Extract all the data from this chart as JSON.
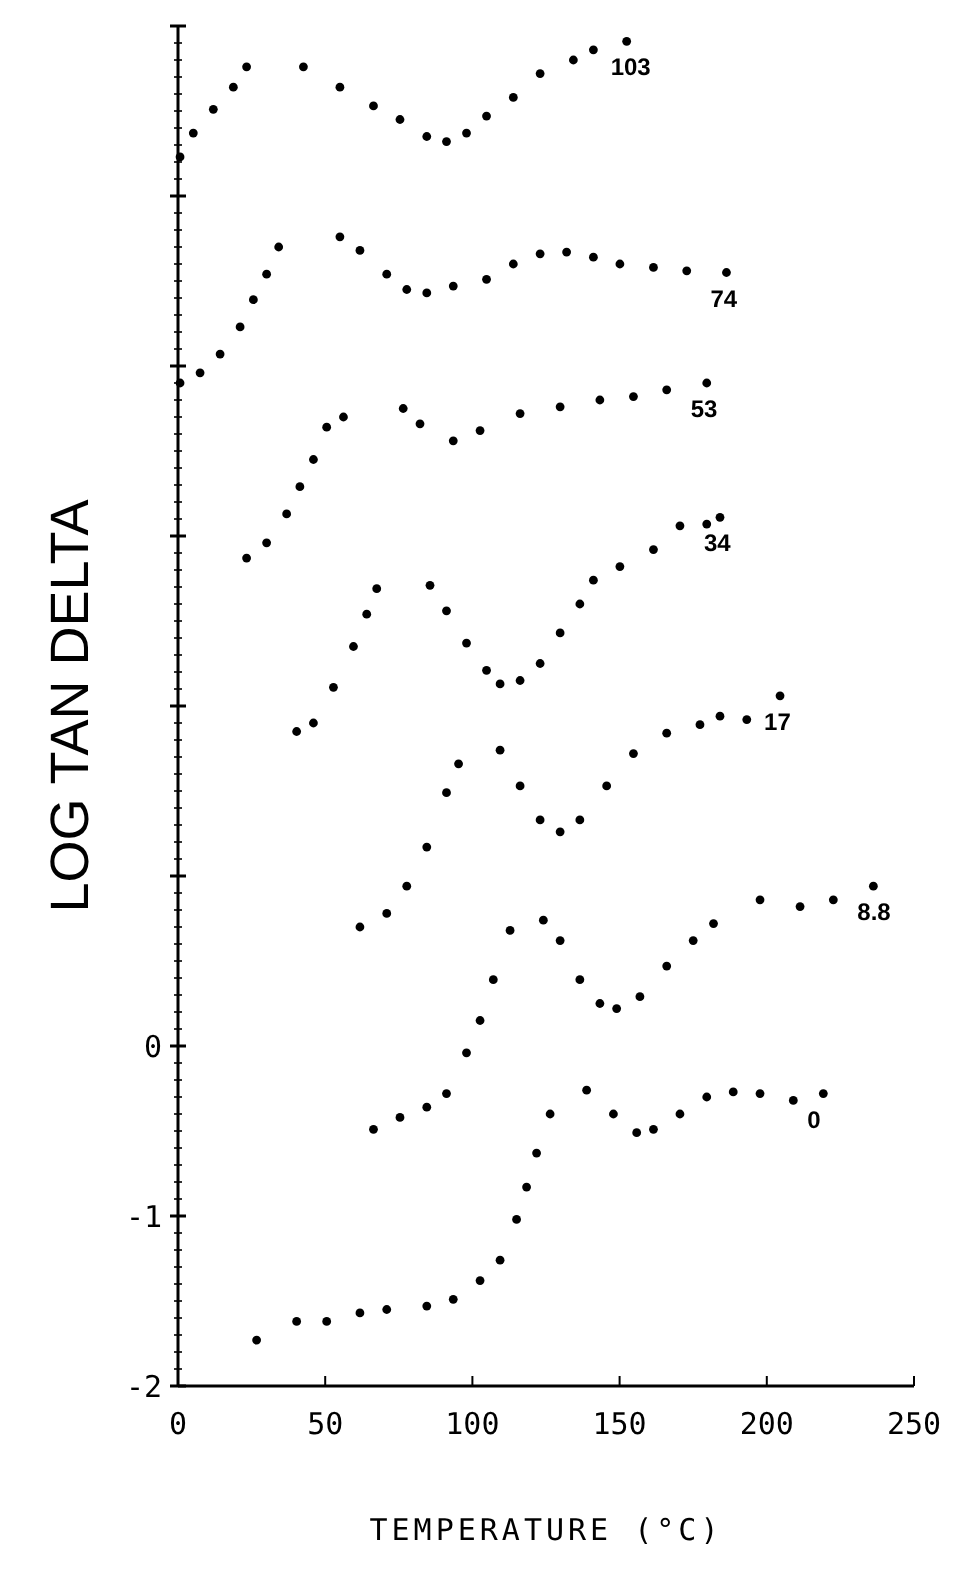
{
  "chart_data": {
    "type": "scatter",
    "xlabel": "TEMPERATURE (°C)",
    "ylabel": "LOG TAN DELTA",
    "xlim": [
      0,
      250
    ],
    "ylim": [
      -2,
      6
    ],
    "xticks": [
      0,
      50,
      100,
      150,
      200,
      250
    ],
    "yticks": [
      -2,
      -1,
      0,
      {
        "value": 1,
        "label": null
      },
      {
        "value": 2,
        "label": null
      },
      {
        "value": 3,
        "label": null
      },
      {
        "value": 4,
        "label": null
      },
      {
        "value": 5,
        "label": null
      },
      {
        "value": 6,
        "label": null
      }
    ],
    "marker": "circle",
    "grid": false,
    "series": [
      {
        "name": "103",
        "color": "#000000",
        "x": [
          0.7,
          5.2,
          12,
          18.8,
          23.3,
          42.6,
          55,
          66.4,
          75.4,
          84.5,
          91.2,
          98,
          104.8,
          113.9,
          123,
          134.3,
          141.1,
          152.4
        ],
        "values": [
          5.23,
          5.37,
          5.51,
          5.64,
          5.76,
          5.76,
          5.64,
          5.53,
          5.45,
          5.35,
          5.32,
          5.37,
          5.47,
          5.58,
          5.72,
          5.8,
          5.86,
          5.91
        ]
      },
      {
        "name": "74",
        "color": "#000000",
        "x": [
          0.7,
          7.5,
          14.3,
          21.1,
          25.6,
          30.1,
          34.2,
          55,
          61.8,
          70.9,
          77.7,
          84.5,
          93.5,
          104.8,
          113.9,
          123,
          132,
          141.1,
          150.1,
          161.5,
          172.8,
          186.3
        ],
        "values": [
          3.9,
          3.96,
          4.07,
          4.23,
          4.39,
          4.54,
          4.7,
          4.76,
          4.68,
          4.54,
          4.45,
          4.43,
          4.47,
          4.51,
          4.6,
          4.66,
          4.67,
          4.64,
          4.6,
          4.58,
          4.56,
          4.55
        ]
      },
      {
        "name": "53",
        "color": "#000000",
        "x": [
          23.3,
          30.1,
          36.9,
          41.4,
          46,
          50.5,
          56.2,
          76.5,
          82.2,
          93.5,
          102.6,
          116.2,
          129.8,
          143.3,
          154.7,
          166,
          179.6
        ],
        "values": [
          2.87,
          2.96,
          3.13,
          3.29,
          3.45,
          3.64,
          3.7,
          3.75,
          3.66,
          3.56,
          3.62,
          3.72,
          3.76,
          3.8,
          3.82,
          3.86,
          3.9
        ]
      },
      {
        "name": "34",
        "color": "#000000",
        "x": [
          40.3,
          46,
          52.8,
          59.6,
          64.1,
          67.5,
          85.6,
          91.2,
          98,
          104.8,
          109.4,
          116.2,
          123,
          129.8,
          136.5,
          141.1,
          150.1,
          161.5,
          170.5,
          179.6,
          184.1
        ],
        "values": [
          1.85,
          1.9,
          2.11,
          2.35,
          2.54,
          2.69,
          2.71,
          2.56,
          2.37,
          2.21,
          2.13,
          2.15,
          2.25,
          2.43,
          2.6,
          2.74,
          2.82,
          2.92,
          3.06,
          3.07,
          3.11
        ]
      },
      {
        "name": "17",
        "color": "#000000",
        "x": [
          61.8,
          70.9,
          77.7,
          84.5,
          91.2,
          95.3,
          109.4,
          116.2,
          123,
          129.8,
          136.5,
          145.6,
          154.7,
          166,
          177.3,
          184.1,
          193.2,
          204.5
        ],
        "values": [
          0.7,
          0.78,
          0.94,
          1.17,
          1.49,
          1.66,
          1.74,
          1.53,
          1.33,
          1.26,
          1.33,
          1.53,
          1.72,
          1.84,
          1.89,
          1.94,
          1.92,
          2.06
        ]
      },
      {
        "name": "8.8",
        "color": "#000000",
        "x": [
          66.4,
          75.4,
          84.5,
          91.2,
          98,
          102.6,
          107.1,
          112.8,
          124.1,
          129.8,
          136.5,
          143.3,
          149,
          156.9,
          166,
          175,
          181.9,
          197.7,
          211.3,
          222.6,
          236.2
        ],
        "values": [
          -0.49,
          -0.42,
          -0.36,
          -0.28,
          -0.04,
          0.15,
          0.39,
          0.68,
          0.74,
          0.62,
          0.39,
          0.25,
          0.22,
          0.29,
          0.47,
          0.62,
          0.72,
          0.86,
          0.82,
          0.86,
          0.94
        ]
      },
      {
        "name": "0",
        "color": "#000000",
        "x": [
          26.7,
          40.3,
          50.5,
          61.8,
          70.9,
          84.5,
          93.5,
          102.6,
          109.4,
          115,
          118.4,
          121.8,
          126.4,
          138.8,
          147.9,
          155.8,
          161.5,
          170.5,
          179.6,
          188.6,
          197.7,
          209,
          219.2
        ],
        "values": [
          -1.73,
          -1.62,
          -1.62,
          -1.57,
          -1.55,
          -1.53,
          -1.49,
          -1.38,
          -1.26,
          -1.02,
          -0.83,
          -0.63,
          -0.4,
          -0.26,
          -0.4,
          -0.51,
          -0.49,
          -0.4,
          -0.3,
          -0.27,
          -0.28,
          -0.32,
          -0.28
        ]
      }
    ]
  }
}
